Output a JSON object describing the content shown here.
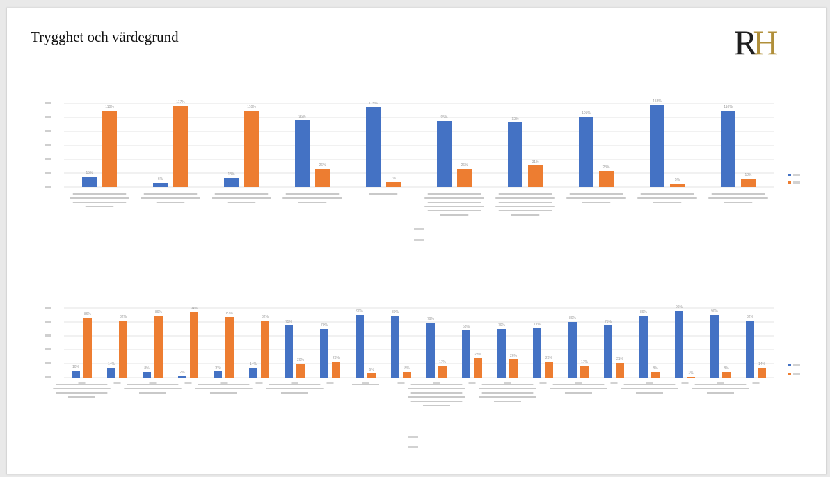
{
  "slide": {
    "title": "Trygghet och värdegrund",
    "logo": {
      "monogram_r": "R",
      "monogram_h": "H",
      "line1": "",
      "line2": ""
    }
  },
  "colors": {
    "blue": "#4472C4",
    "orange": "#ED7D31",
    "grid": "#e3e3e3",
    "text": "#9a9a9a"
  },
  "chart_data": [
    {
      "type": "bar",
      "title": "",
      "xlabel": "",
      "ylabel": "",
      "ylim": [
        0,
        120
      ],
      "grid": true,
      "legend_position": "right",
      "series": [
        {
          "color": "#4472C4",
          "values": [
            15,
            6,
            13,
            96,
            115,
            95,
            93,
            101,
            118,
            110
          ]
        },
        {
          "color": "#ED7D31",
          "values": [
            110,
            117,
            110,
            26,
            7,
            26,
            31,
            23,
            5,
            12
          ]
        }
      ],
      "categories": [
        "",
        "",
        "",
        "",
        "",
        "",
        "",
        "",
        "",
        ""
      ],
      "data_labels": [
        [
          "15%",
          "6%",
          "13%",
          "96%",
          "115%",
          "95%",
          "93%",
          "101%",
          "118%",
          "110%"
        ],
        [
          "110%",
          "117%",
          "110%",
          "26%",
          "7%",
          "26%",
          "31%",
          "23%",
          "5%",
          "12%"
        ]
      ]
    },
    {
      "type": "bar",
      "title": "",
      "xlabel": "",
      "ylabel": "",
      "ylim": [
        0,
        100
      ],
      "grid": true,
      "legend_position": "right",
      "series": [
        {
          "color": "#4472C4",
          "values": [
            10,
            14,
            8,
            2,
            9,
            14,
            75,
            70,
            90,
            89,
            79,
            68,
            70,
            71,
            80,
            75,
            89,
            96,
            90,
            82
          ]
        },
        {
          "color": "#ED7D31",
          "values": [
            86,
            82,
            89,
            94,
            87,
            82,
            20,
            23,
            6,
            8,
            17,
            28,
            26,
            23,
            17,
            21,
            8,
            1,
            8,
            14
          ]
        }
      ],
      "categories": [
        "",
        "",
        "",
        "",
        "",
        "",
        "",
        "",
        "",
        "",
        "",
        "",
        "",
        "",
        "",
        "",
        "",
        "",
        "",
        ""
      ],
      "data_labels": [
        [
          "10%",
          "14%",
          "8%",
          "2%",
          "9%",
          "14%",
          "75%",
          "70%",
          "90%",
          "89%",
          "79%",
          "68%",
          "70%",
          "71%",
          "80%",
          "75%",
          "89%",
          "96%",
          "90%",
          "82%"
        ],
        [
          "86%",
          "82%",
          "89%",
          "94%",
          "87%",
          "82%",
          "20%",
          "23%",
          "6%",
          "8%",
          "17%",
          "28%",
          "26%",
          "23%",
          "17%",
          "21%",
          "8%",
          "1%",
          "8%",
          "14%"
        ]
      ]
    }
  ]
}
